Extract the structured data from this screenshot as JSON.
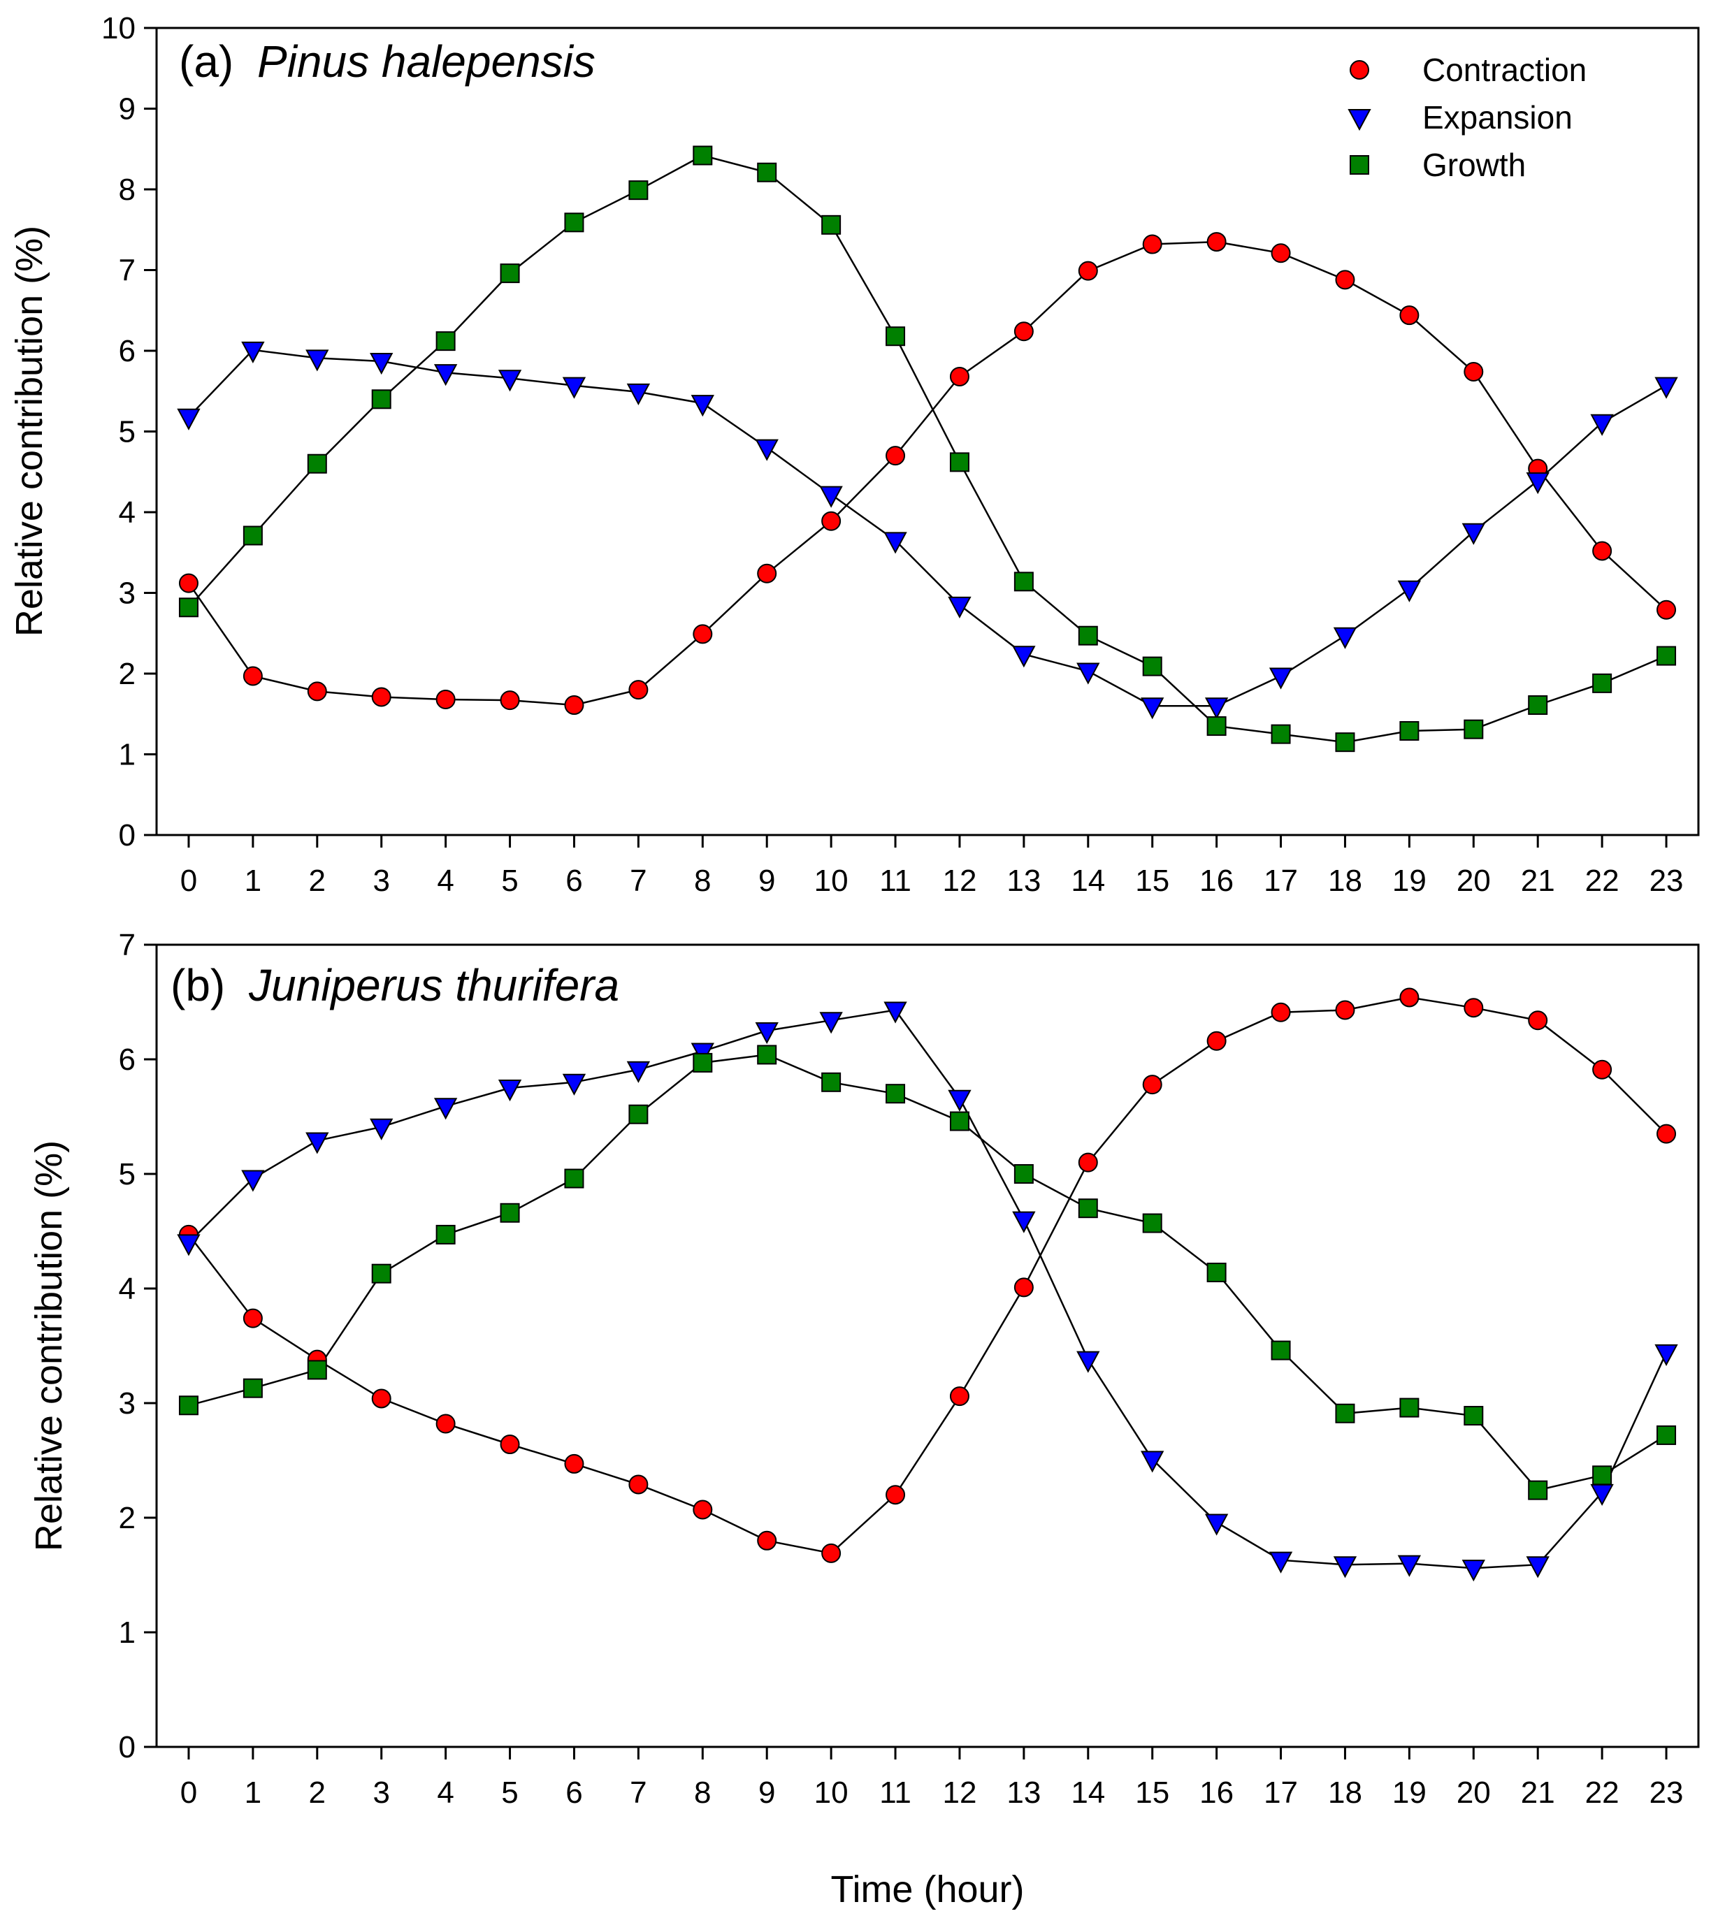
{
  "figure": {
    "xlabel": "Time (hour)",
    "legend": {
      "placement": "top-right of panel (a)",
      "entries": [
        {
          "label": "Contraction",
          "marker": "circle",
          "color": "#ff0000"
        },
        {
          "label": "Expansion",
          "marker": "triangle-down",
          "color": "#0000ff"
        },
        {
          "label": "Growth",
          "marker": "square",
          "color": "#008000"
        }
      ]
    }
  },
  "chart_data": [
    {
      "type": "line",
      "panel_label": "(a)",
      "title": "Pinus halepensis",
      "ylabel": "Relative contribution (%)",
      "xlabel": "Time (hour)",
      "x": [
        0,
        1,
        2,
        3,
        4,
        5,
        6,
        7,
        8,
        9,
        10,
        11,
        12,
        13,
        14,
        15,
        16,
        17,
        18,
        19,
        20,
        21,
        22,
        23
      ],
      "xlim": [
        -0.5,
        23.5
      ],
      "ylim": [
        0,
        10
      ],
      "yticks": [
        0,
        1,
        2,
        3,
        4,
        5,
        6,
        7,
        8,
        9,
        10
      ],
      "grid": false,
      "series": [
        {
          "name": "Contraction",
          "marker": "circle",
          "color": "#ff0000",
          "values": [
            3.12,
            1.97,
            1.78,
            1.71,
            1.68,
            1.67,
            1.61,
            1.8,
            2.49,
            3.24,
            3.89,
            4.7,
            5.68,
            6.24,
            6.99,
            7.32,
            7.35,
            7.21,
            6.88,
            6.44,
            5.74,
            4.54,
            3.52,
            2.79
          ]
        },
        {
          "name": "Expansion",
          "marker": "triangle-down",
          "color": "#0000ff",
          "values": [
            5.18,
            6.01,
            5.91,
            5.87,
            5.73,
            5.66,
            5.57,
            5.49,
            5.35,
            4.8,
            4.22,
            3.65,
            2.85,
            2.24,
            2.03,
            1.6,
            1.6,
            1.97,
            2.47,
            3.05,
            3.76,
            4.39,
            5.11,
            5.57
          ]
        },
        {
          "name": "Growth",
          "marker": "square",
          "color": "#008000",
          "values": [
            2.82,
            3.71,
            4.6,
            5.4,
            6.12,
            6.96,
            7.59,
            7.99,
            8.42,
            8.21,
            7.56,
            6.18,
            4.62,
            3.14,
            2.47,
            2.09,
            1.35,
            1.25,
            1.15,
            1.29,
            1.31,
            1.61,
            1.88,
            2.22
          ]
        }
      ]
    },
    {
      "type": "line",
      "panel_label": "(b)",
      "title": "Juniperus thurifera",
      "ylabel": "Relative contribution (%)",
      "xlabel": "Time (hour)",
      "x": [
        0,
        1,
        2,
        3,
        4,
        5,
        6,
        7,
        8,
        9,
        10,
        11,
        12,
        13,
        14,
        15,
        16,
        17,
        18,
        19,
        20,
        21,
        22,
        23
      ],
      "xlim": [
        -0.5,
        23.5
      ],
      "ylim": [
        0,
        7
      ],
      "yticks": [
        0,
        1,
        2,
        3,
        4,
        5,
        6,
        7
      ],
      "grid": false,
      "series": [
        {
          "name": "Contraction",
          "marker": "circle",
          "color": "#ff0000",
          "values": [
            4.47,
            3.74,
            3.38,
            3.04,
            2.82,
            2.64,
            2.47,
            2.29,
            2.07,
            1.8,
            1.69,
            2.2,
            3.06,
            4.01,
            5.1,
            5.78,
            6.16,
            6.41,
            6.43,
            6.54,
            6.45,
            6.34,
            5.91,
            5.35
          ]
        },
        {
          "name": "Expansion",
          "marker": "triangle-down",
          "color": "#0000ff",
          "values": [
            4.4,
            4.96,
            5.29,
            5.41,
            5.59,
            5.75,
            5.8,
            5.91,
            6.07,
            6.25,
            6.34,
            6.43,
            5.66,
            4.6,
            3.38,
            2.51,
            1.96,
            1.63,
            1.59,
            1.6,
            1.56,
            1.59,
            2.22,
            3.44
          ]
        },
        {
          "name": "Growth",
          "marker": "square",
          "color": "#008000",
          "values": [
            2.98,
            3.13,
            3.29,
            4.13,
            4.47,
            4.66,
            4.96,
            5.52,
            5.97,
            6.04,
            5.8,
            5.7,
            5.46,
            5.0,
            4.7,
            4.57,
            4.14,
            3.46,
            2.91,
            2.96,
            2.89,
            2.24,
            2.37,
            2.72
          ]
        }
      ]
    }
  ]
}
